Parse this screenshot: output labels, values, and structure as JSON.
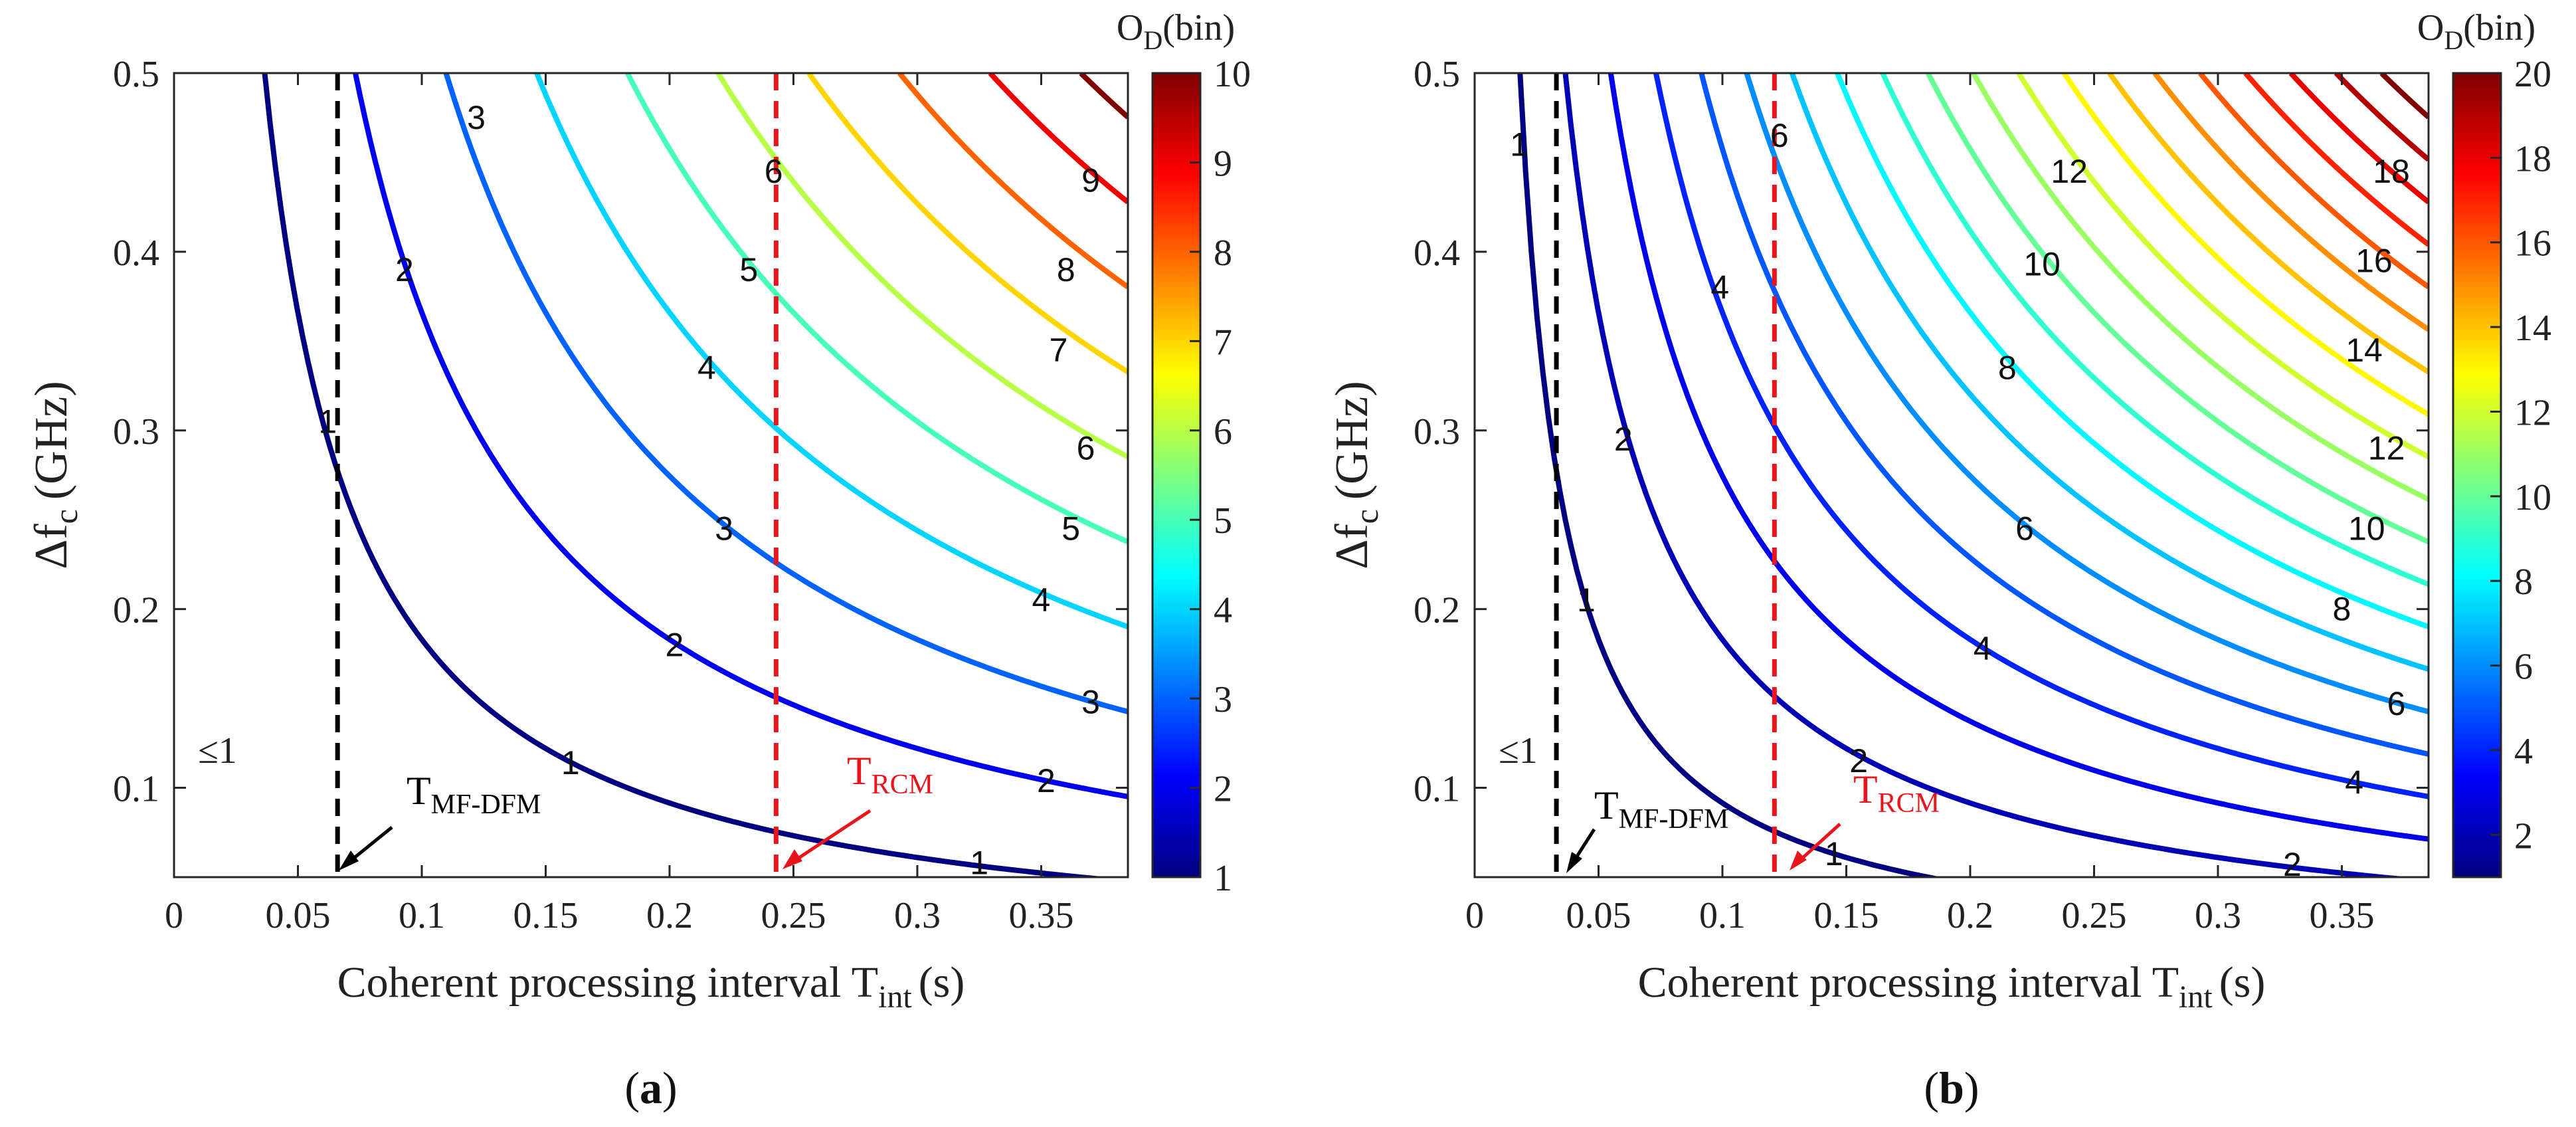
{
  "chart_data": [
    {
      "type": "line",
      "panel_label": "a",
      "xlabel": "Coherent processing interval T",
      "xlabel_sub": "int",
      "xlabel_unit": "(s)",
      "ylabel": "Δf",
      "ylabel_sub": "c",
      "ylabel_unit": "(GHz)",
      "xlim": [
        0,
        0.385
      ],
      "ylim": [
        0.05,
        0.5
      ],
      "xticks": [
        0,
        0.05,
        0.1,
        0.15,
        0.2,
        0.25,
        0.3,
        0.35
      ],
      "xtick_labels": [
        "0",
        "0.05",
        "0.1",
        "0.15",
        "0.2",
        "0.25",
        "0.3",
        "0.35"
      ],
      "yticks": [
        0.1,
        0.2,
        0.3,
        0.4,
        0.5
      ],
      "ytick_labels": [
        "0.1",
        "0.2",
        "0.3",
        "0.4",
        "0.5"
      ],
      "contour_constant": 0.0183,
      "levels": [
        1,
        2,
        3,
        4,
        5,
        6,
        7,
        8,
        9,
        10
      ],
      "contour_labels": [
        {
          "text": "1",
          "x": 0.062,
          "y": 0.305
        },
        {
          "text": "1",
          "x": 0.16,
          "y": 0.114
        },
        {
          "text": "1",
          "x": 0.325,
          "y": 0.058
        },
        {
          "text": "2",
          "x": 0.093,
          "y": 0.39
        },
        {
          "text": "2",
          "x": 0.202,
          "y": 0.18
        },
        {
          "text": "2",
          "x": 0.352,
          "y": 0.104
        },
        {
          "text": "3",
          "x": 0.122,
          "y": 0.475
        },
        {
          "text": "3",
          "x": 0.222,
          "y": 0.245
        },
        {
          "text": "3",
          "x": 0.37,
          "y": 0.148
        },
        {
          "text": "4",
          "x": 0.215,
          "y": 0.335
        },
        {
          "text": "4",
          "x": 0.35,
          "y": 0.205
        },
        {
          "text": "5",
          "x": 0.232,
          "y": 0.39
        },
        {
          "text": "5",
          "x": 0.362,
          "y": 0.245
        },
        {
          "text": "6",
          "x": 0.242,
          "y": 0.445
        },
        {
          "text": "6",
          "x": 0.368,
          "y": 0.29
        },
        {
          "text": "7",
          "x": 0.357,
          "y": 0.345
        },
        {
          "text": "8",
          "x": 0.36,
          "y": 0.39
        },
        {
          "text": "9",
          "x": 0.37,
          "y": 0.44
        }
      ],
      "region_label": "≤1",
      "vlines": [
        {
          "name": "T_MF-DFM",
          "x": 0.066,
          "color": "#000000"
        },
        {
          "name": "T_RCM",
          "x": 0.243,
          "color": "#e8161c"
        }
      ],
      "annotations": [
        {
          "main": "T",
          "sub": "MF-DFM",
          "color": "#000000"
        },
        {
          "main": "T",
          "sub": "RCM",
          "color": "#e8161c"
        }
      ],
      "colorbar": {
        "title_main": "O",
        "title_sub": "D",
        "title_unit": "(bin)",
        "min": 1,
        "max": 10,
        "ticks": [
          1,
          2,
          3,
          4,
          5,
          6,
          7,
          8,
          9,
          10
        ],
        "tick_labels": [
          "1",
          "2",
          "3",
          "4",
          "5",
          "6",
          "7",
          "8",
          "9",
          "10"
        ]
      }
    },
    {
      "type": "line",
      "panel_label": "b",
      "xlabel": "Coherent processing interval T",
      "xlabel_sub": "int",
      "xlabel_unit": "(s)",
      "ylabel": "Δf",
      "ylabel_sub": "c",
      "ylabel_unit": "(GHz)",
      "xlim": [
        0,
        0.385
      ],
      "ylim": [
        0.05,
        0.5
      ],
      "xticks": [
        0,
        0.05,
        0.1,
        0.15,
        0.2,
        0.25,
        0.3,
        0.35
      ],
      "xtick_labels": [
        "0",
        "0.05",
        "0.1",
        "0.15",
        "0.2",
        "0.25",
        "0.3",
        "0.35"
      ],
      "yticks": [
        0.1,
        0.2,
        0.3,
        0.4,
        0.5
      ],
      "ytick_labels": [
        "0.1",
        "0.2",
        "0.3",
        "0.4",
        "0.5"
      ],
      "contour_constant": 0.00915,
      "levels": [
        1,
        2,
        3,
        4,
        5,
        6,
        7,
        8,
        9,
        10,
        11,
        12,
        13,
        14,
        15,
        16,
        17,
        18,
        19,
        20
      ],
      "contour_labels": [
        {
          "text": "1",
          "x": 0.018,
          "y": 0.46
        },
        {
          "text": "1",
          "x": 0.045,
          "y": 0.205
        },
        {
          "text": "1",
          "x": 0.145,
          "y": 0.063
        },
        {
          "text": "2",
          "x": 0.06,
          "y": 0.295
        },
        {
          "text": "2",
          "x": 0.155,
          "y": 0.115
        },
        {
          "text": "2",
          "x": 0.33,
          "y": 0.057
        },
        {
          "text": "4",
          "x": 0.099,
          "y": 0.38
        },
        {
          "text": "4",
          "x": 0.205,
          "y": 0.178
        },
        {
          "text": "4",
          "x": 0.355,
          "y": 0.103
        },
        {
          "text": "6",
          "x": 0.123,
          "y": 0.465
        },
        {
          "text": "6",
          "x": 0.222,
          "y": 0.245
        },
        {
          "text": "6",
          "x": 0.372,
          "y": 0.147
        },
        {
          "text": "8",
          "x": 0.215,
          "y": 0.335
        },
        {
          "text": "8",
          "x": 0.35,
          "y": 0.2
        },
        {
          "text": "10",
          "x": 0.229,
          "y": 0.393
        },
        {
          "text": "10",
          "x": 0.36,
          "y": 0.245
        },
        {
          "text": "12",
          "x": 0.24,
          "y": 0.445
        },
        {
          "text": "12",
          "x": 0.368,
          "y": 0.29
        },
        {
          "text": "14",
          "x": 0.359,
          "y": 0.345
        },
        {
          "text": "16",
          "x": 0.363,
          "y": 0.395
        },
        {
          "text": "18",
          "x": 0.37,
          "y": 0.445
        }
      ],
      "region_label": "≤1",
      "vlines": [
        {
          "name": "T_MF-DFM",
          "x": 0.033,
          "color": "#000000"
        },
        {
          "name": "T_RCM",
          "x": 0.121,
          "color": "#e8161c"
        }
      ],
      "annotations": [
        {
          "main": "T",
          "sub": "MF-DFM",
          "color": "#000000"
        },
        {
          "main": "T",
          "sub": "RCM",
          "color": "#e8161c"
        }
      ],
      "colorbar": {
        "title_main": "O",
        "title_sub": "D",
        "title_unit": "(bin)",
        "min": 1,
        "max": 20,
        "ticks": [
          2,
          4,
          6,
          8,
          10,
          12,
          14,
          16,
          18,
          20
        ],
        "tick_labels": [
          "2",
          "4",
          "6",
          "8",
          "10",
          "12",
          "14",
          "16",
          "18",
          "20"
        ]
      }
    }
  ]
}
